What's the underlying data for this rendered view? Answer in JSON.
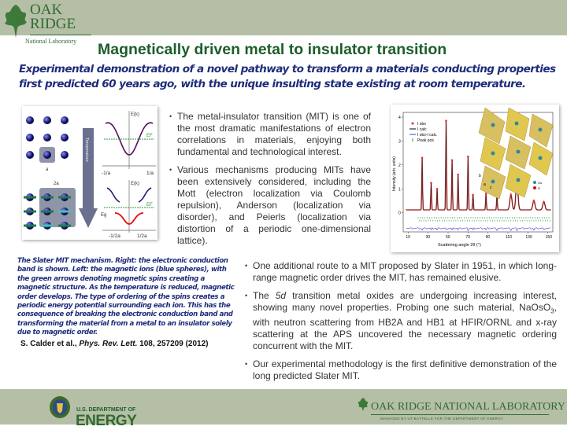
{
  "header": {
    "logo_line1": "OAK",
    "logo_line2": "RIDGE",
    "logo_line3": "National Laboratory",
    "title": "Magnetically driven metal to insulator transition",
    "subtitle": "Experimental demonstration of a novel pathway to transform a materials conducting properties first predicted 60 years ago, with the unique insulting state existing at room temperature."
  },
  "figure_left": {
    "label_a": "a",
    "label_2a": "2a",
    "arrow_label": "Temperature",
    "ek1": "E(k)",
    "ef1": "EF",
    "tick1_left": "-1/a",
    "tick1_right": "1/a",
    "ek2": "E(k)",
    "ef2": "EF",
    "eg": "Eg",
    "tick2_left": "-1/2a",
    "tick2_right": "1/2a"
  },
  "bullets_top": [
    "The metal-insulator transition (MIT) is one of the most dramatic manifestations of electron correlations in materials, enjoying both fundamental and technological interest.",
    "Various mechanisms producing MITs have been extensively considered, including the Mott (electron localization via Coulomb repulsion), Anderson (localization via disorder), and Peierls (localization via distortion of a periodic one-dimensional lattice)."
  ],
  "caption": "The Slater MIT mechanism. Right: the electronic conduction band is shown. Left: the magnetic ions (blue spheres), with the green arrows denoting magnetic spins creating a magnetic structure. As the temperature is reduced, magnetic order develops. The type of ordering of the spins creates a periodic energy potential surrounding each ion. This has the consequence of breaking the electronic conduction band and transforming the material from a metal to an insulator solely due to magnetic order.",
  "citation": {
    "authors": "S. Calder et al., ",
    "journal": "Phys. Rev. Lett.",
    "rest": " 108, 257209 (2012)"
  },
  "bullets_bottom": {
    "b1": "One additional route to a MIT proposed by Slater in 1951, in which long-range magnetic order drives the MIT, has remained elusive.",
    "b2_pre": "The ",
    "b2_em": "5d",
    "b2_mid": " transition metal oxides are undergoing increasing interest, showing many novel properties. Probing one such material, NaOsO",
    "b2_sub": "3",
    "b2_post": ", with neutron scattering from HB2A and HB1 at HFIR/ORNL and x-ray scattering at the APS uncovered the necessary magnetic ordering concurrent with the MIT.",
    "b3": "Our experimental methodology is the first definitive demonstration of the long predicted Slater MIT."
  },
  "chart_data": {
    "type": "line",
    "xlabel": "Scattering angle 2θ (°)",
    "ylabel": "Intensity (arb. units)",
    "xlim": [
      5,
      155
    ],
    "ylim": [
      -0.8,
      4.2
    ],
    "xticks": [
      10,
      30,
      50,
      70,
      90,
      110,
      130,
      150
    ],
    "yticks": [
      0,
      1,
      2,
      3,
      4
    ],
    "legend": [
      "I obs",
      "I calc",
      "I obs-I calc.",
      "Peak pos"
    ],
    "legend_position": "top-left",
    "inset_labels": {
      "b": "b",
      "a": "a",
      "c": "c",
      "os": "Os",
      "o": "O"
    },
    "peaks": [
      {
        "x": 24,
        "y": 2.3
      },
      {
        "x": 33,
        "y": 1.25
      },
      {
        "x": 39,
        "y": 1.0
      },
      {
        "x": 48,
        "y": 3.85
      },
      {
        "x": 54,
        "y": 2.2
      },
      {
        "x": 60,
        "y": 1.6
      },
      {
        "x": 70,
        "y": 2.35
      },
      {
        "x": 75,
        "y": 0.75
      },
      {
        "x": 88,
        "y": 0.8
      },
      {
        "x": 99,
        "y": 0.75
      },
      {
        "x": 113,
        "y": 0.75
      },
      {
        "x": 119,
        "y": 1.25
      },
      {
        "x": 136,
        "y": 0.5
      },
      {
        "x": 146,
        "y": 0.45
      }
    ]
  },
  "footer": {
    "doe_line1": "U.S. DEPARTMENT OF",
    "doe_line2": "ENERGY",
    "ornl": "OAK RIDGE NATIONAL LABORATORY",
    "ornl_sub": "MANAGED BY UT-BATTELLE FOR THE DEPARTMENT OF ENERGY"
  },
  "colors": {
    "band": "#b5bfa6",
    "title": "#1d5e2a",
    "subtitle": "#1f2d7a"
  }
}
